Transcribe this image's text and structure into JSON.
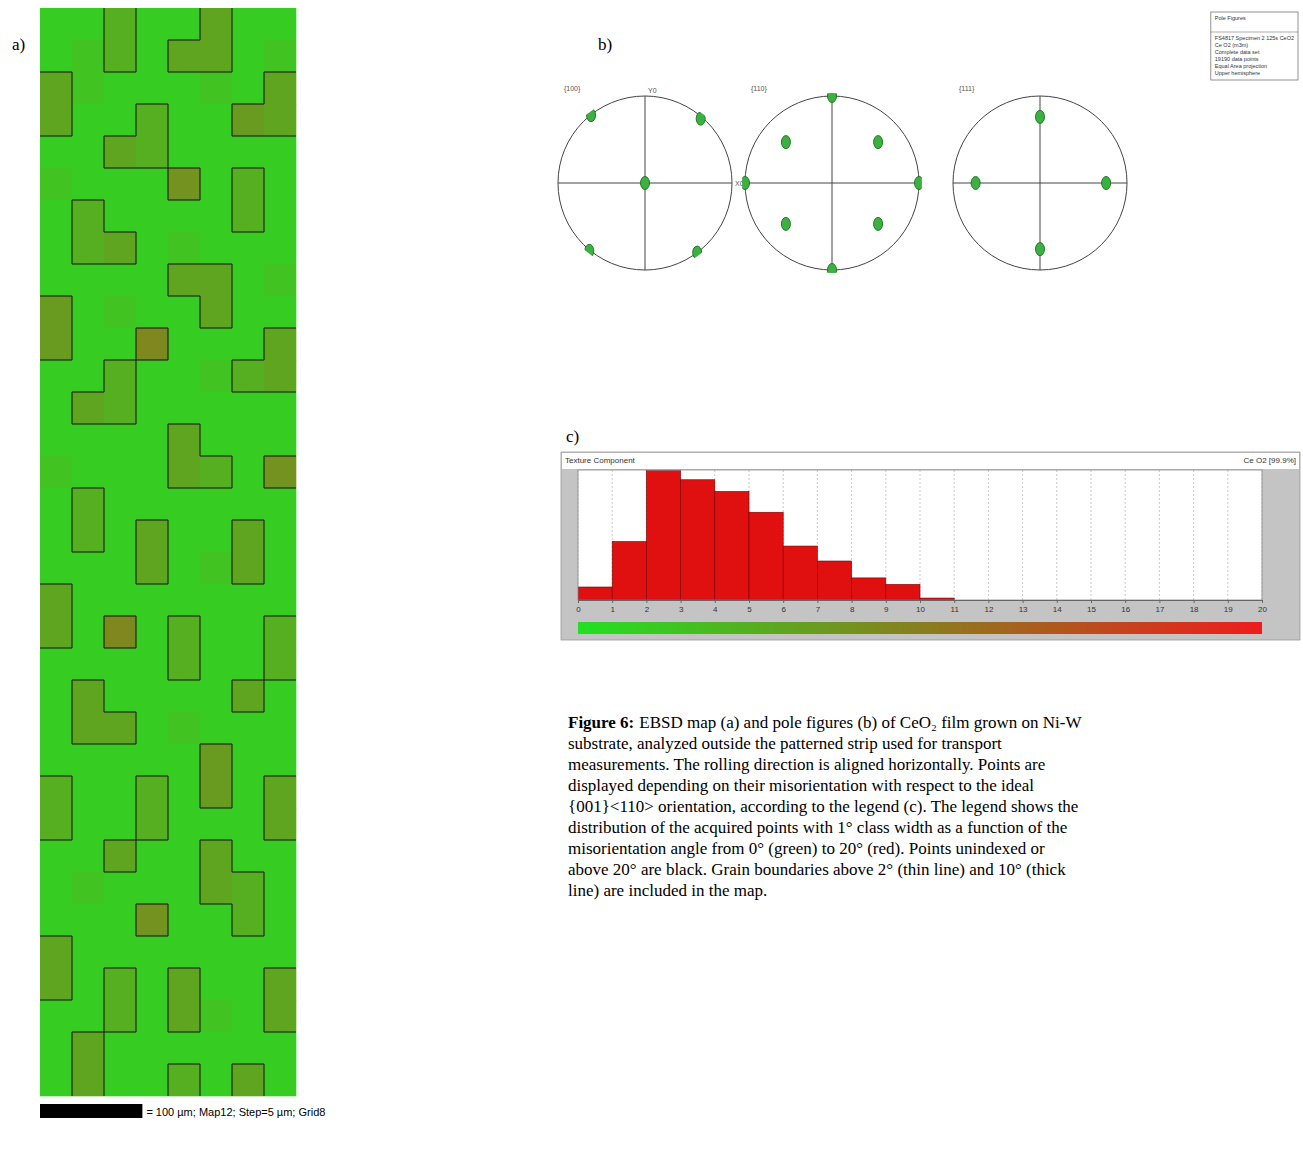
{
  "panel_labels": [
    "a)",
    "b)",
    "c)"
  ],
  "map": {
    "width_um": 250,
    "boundary_thresholds": [
      2,
      10
    ],
    "cells": [
      [
        2,
        2,
        5,
        2,
        2,
        6,
        2,
        2
      ],
      [
        2,
        3,
        5,
        2,
        6,
        6,
        2,
        3
      ],
      [
        6,
        3,
        2,
        2,
        2,
        3,
        2,
        6
      ],
      [
        6,
        2,
        2,
        5,
        2,
        2,
        7,
        6
      ],
      [
        2,
        2,
        6,
        5,
        2,
        2,
        2,
        2
      ],
      [
        3,
        2,
        2,
        2,
        8,
        2,
        5,
        2
      ],
      [
        2,
        5,
        2,
        2,
        2,
        2,
        5,
        2
      ],
      [
        2,
        5,
        6,
        2,
        3,
        2,
        2,
        2
      ],
      [
        2,
        2,
        2,
        2,
        6,
        6,
        2,
        3
      ],
      [
        7,
        2,
        3,
        2,
        2,
        6,
        2,
        2
      ],
      [
        7,
        2,
        2,
        9,
        2,
        2,
        2,
        6
      ],
      [
        2,
        2,
        5,
        2,
        2,
        3,
        5,
        6
      ],
      [
        2,
        6,
        5,
        2,
        2,
        2,
        2,
        2
      ],
      [
        2,
        2,
        2,
        2,
        6,
        2,
        2,
        2
      ],
      [
        3,
        2,
        2,
        2,
        6,
        5,
        2,
        8
      ],
      [
        2,
        5,
        2,
        2,
        2,
        2,
        2,
        2
      ],
      [
        2,
        5,
        2,
        6,
        2,
        2,
        6,
        2
      ],
      [
        2,
        2,
        2,
        6,
        2,
        3,
        6,
        2
      ],
      [
        6,
        2,
        2,
        2,
        2,
        2,
        2,
        2
      ],
      [
        6,
        2,
        9,
        2,
        5,
        2,
        2,
        5
      ],
      [
        2,
        2,
        2,
        2,
        5,
        2,
        2,
        5
      ],
      [
        2,
        6,
        2,
        2,
        2,
        2,
        6,
        2
      ],
      [
        2,
        6,
        6,
        2,
        3,
        2,
        2,
        2
      ],
      [
        2,
        2,
        2,
        2,
        2,
        7,
        2,
        2
      ],
      [
        5,
        2,
        2,
        5,
        2,
        7,
        2,
        6
      ],
      [
        5,
        2,
        2,
        5,
        2,
        2,
        2,
        6
      ],
      [
        2,
        2,
        6,
        2,
        2,
        6,
        2,
        2
      ],
      [
        2,
        3,
        2,
        2,
        2,
        6,
        5,
        2
      ],
      [
        2,
        2,
        2,
        8,
        2,
        2,
        5,
        2
      ],
      [
        6,
        2,
        2,
        2,
        2,
        2,
        2,
        2
      ],
      [
        6,
        2,
        5,
        2,
        6,
        2,
        2,
        6
      ],
      [
        2,
        2,
        5,
        2,
        6,
        3,
        2,
        6
      ],
      [
        2,
        6,
        2,
        2,
        2,
        2,
        2,
        2
      ],
      [
        2,
        6,
        2,
        2,
        5,
        2,
        6,
        2
      ]
    ],
    "scale_bar": {
      "length_um": 100,
      "label": "= 100 µm; Map12; Step=5 µm; Grid8"
    }
  },
  "pole_figures": {
    "range": [
      -1,
      1
    ],
    "axis_labels": {
      "y": "Y0",
      "x": "X0"
    },
    "figures": [
      {
        "title": "{100}",
        "poles": [
          [
            0,
            0
          ],
          [
            -0.62,
            0.78
          ],
          [
            0.64,
            0.74
          ],
          [
            -0.64,
            -0.78
          ],
          [
            0.6,
            -0.8
          ]
        ]
      },
      {
        "title": "{110}",
        "poles": [
          [
            0,
            1
          ],
          [
            0,
            -1
          ],
          [
            -1,
            0
          ],
          [
            1,
            0
          ],
          [
            -0.53,
            0.47
          ],
          [
            0.53,
            0.47
          ],
          [
            -0.53,
            -0.47
          ],
          [
            0.53,
            -0.47
          ]
        ]
      },
      {
        "title": "{111}",
        "poles": [
          [
            0,
            0.76
          ],
          [
            0,
            -0.76
          ],
          [
            -0.74,
            0
          ],
          [
            0.76,
            0
          ]
        ]
      }
    ],
    "legend": {
      "title": "Pole Figures",
      "lines": [
        "FS4817 Specimen 2 125s CeO2",
        "Ce O2 (m3m)",
        "Complete data set",
        "19190 data points",
        "Equal Area projection",
        "Upper hemisphere"
      ]
    }
  },
  "chart_data": {
    "type": "histogram",
    "title": "Texture Component",
    "subtitle": "Ce O2 [99.9%]",
    "bins": [
      0,
      1,
      2,
      3,
      4,
      5,
      6,
      7,
      8,
      9,
      10,
      11,
      12,
      13,
      14,
      15,
      16,
      17,
      18,
      19,
      20
    ],
    "counts": [
      2.0,
      9.0,
      19.9,
      18.5,
      16.7,
      13.5,
      8.3,
      6.0,
      3.4,
      2.4,
      0.3,
      0,
      0,
      0,
      0,
      0,
      0,
      0,
      0,
      0
    ],
    "color": "#e01010",
    "xlim": [
      0,
      20
    ],
    "xticks": [
      0,
      1,
      2,
      3,
      4,
      5,
      6,
      7,
      8,
      9,
      10,
      11,
      12,
      13,
      14,
      15,
      16,
      17,
      18,
      19,
      20
    ],
    "ylim": [
      0,
      20
    ],
    "grid": true,
    "tick_labels": "x",
    "colorbar": {
      "range": [
        0,
        20
      ],
      "colors": [
        "#22e022",
        "#ee1c1c"
      ]
    }
  },
  "caption": {
    "label": "Figure 6:",
    "lines": [
      "EBSD map (a) and pole figures (b) of CeO₂ film grown on Ni-W",
      "substrate, analyzed outside the patterned strip used for transport",
      "measurements. The rolling direction is aligned horizontally. Points are",
      "displayed depending on their misorientation with respect to the ideal",
      "{001}<110> orientation, according to the legend (c). The legend shows the",
      "distribution of the acquired points with 1° class width as a function of the",
      "misorientation angle from 0° (green) to 20° (red). Points unindexed or",
      "above 20° are black. Grain boundaries above 2° (thin line) and 10° (thick",
      "line) are included in the map."
    ]
  }
}
